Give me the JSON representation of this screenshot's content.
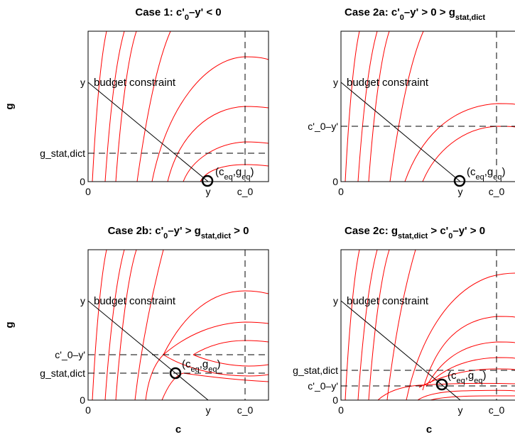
{
  "figure": {
    "ylabel": "g",
    "xlabel": "c"
  },
  "chart_data": [
    {
      "type": "line",
      "title": "Case 1: c'₀–y' < 0",
      "xlabel": "",
      "ylabel": "g",
      "xticks": [
        "0",
        "y",
        "c_0"
      ],
      "yticks": [
        "0",
        "g_stat,dict",
        "y"
      ],
      "xlim": [
        0,
        1
      ],
      "ylim": [
        0,
        1
      ],
      "budget_label": "budget constraint",
      "eq_label": "(c_eq, g_eq)",
      "colors": {
        "curves": "#ff0000",
        "budget": "#000000",
        "dashes": "#000000"
      }
    },
    {
      "type": "line",
      "title": "Case 2a: c'₀–y' > 0 > g_stat,dict",
      "xlabel": "",
      "ylabel": "",
      "xticks": [
        "0",
        "y",
        "c_0"
      ],
      "yticks": [
        "0",
        "c'_0–y'",
        "y"
      ],
      "xlim": [
        0,
        1
      ],
      "ylim": [
        0,
        1
      ],
      "budget_label": "budget constraint",
      "eq_label": "(c_eq, g_eq)"
    },
    {
      "type": "line",
      "title": "Case 2b: c'₀–y' > g_stat,dict > 0",
      "xlabel": "c",
      "ylabel": "g",
      "xticks": [
        "0",
        "y",
        "c_0"
      ],
      "yticks": [
        "0",
        "g_stat,dict",
        "c'_0–y'",
        "y"
      ],
      "xlim": [
        0,
        1
      ],
      "ylim": [
        0,
        1
      ],
      "budget_label": "budget constraint",
      "eq_label": "(c_eq, g_eq)"
    },
    {
      "type": "line",
      "title": "Case 2c: g_stat,dict > c'₀–y' > 0",
      "xlabel": "c",
      "ylabel": "",
      "xticks": [
        "0",
        "y",
        "c_0"
      ],
      "yticks": [
        "0",
        "c'_0–y'",
        "g_stat,dict",
        "y"
      ],
      "xlim": [
        0,
        1
      ],
      "ylim": [
        0,
        1
      ],
      "budget_label": "budget constraint",
      "eq_label": "(c_eq, g_eq)"
    }
  ]
}
